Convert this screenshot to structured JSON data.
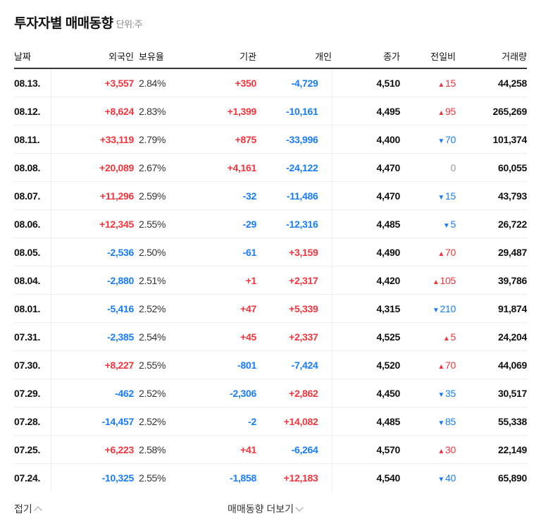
{
  "header": {
    "title": "투자자별 매매동향",
    "unit": "단위:주"
  },
  "columns": [
    "날짜",
    "외국인",
    "보유율",
    "기관",
    "개인",
    "종가",
    "전일비",
    "거래량"
  ],
  "colors": {
    "up": "#f0353e",
    "down": "#1a7cf5",
    "neutral": "#999999"
  },
  "rows": [
    [
      "08.13.",
      "+3,557",
      "2.84%",
      "+350",
      "-4,729",
      "4,510",
      "up",
      "15",
      "44,258"
    ],
    [
      "08.12.",
      "+8,624",
      "2.83%",
      "+1,399",
      "-10,161",
      "4,495",
      "up",
      "95",
      "265,269"
    ],
    [
      "08.11.",
      "+33,119",
      "2.79%",
      "+875",
      "-33,996",
      "4,400",
      "down",
      "70",
      "101,374"
    ],
    [
      "08.08.",
      "+20,089",
      "2.67%",
      "+4,161",
      "-24,122",
      "4,470",
      "none",
      "0",
      "60,055"
    ],
    [
      "08.07.",
      "+11,296",
      "2.59%",
      "-32",
      "-11,486",
      "4,470",
      "down",
      "15",
      "43,793"
    ],
    [
      "08.06.",
      "+12,345",
      "2.55%",
      "-29",
      "-12,316",
      "4,485",
      "down",
      "5",
      "26,722"
    ],
    [
      "08.05.",
      "-2,536",
      "2.50%",
      "-61",
      "+3,159",
      "4,490",
      "up",
      "70",
      "29,487"
    ],
    [
      "08.04.",
      "-2,880",
      "2.51%",
      "+1",
      "+2,317",
      "4,420",
      "up",
      "105",
      "39,786"
    ],
    [
      "08.01.",
      "-5,416",
      "2.52%",
      "+47",
      "+5,339",
      "4,315",
      "down",
      "210",
      "91,874"
    ],
    [
      "07.31.",
      "-2,385",
      "2.54%",
      "+45",
      "+2,337",
      "4,525",
      "up",
      "5",
      "24,204"
    ],
    [
      "07.30.",
      "+8,227",
      "2.55%",
      "-801",
      "-7,424",
      "4,520",
      "up",
      "70",
      "44,069"
    ],
    [
      "07.29.",
      "-462",
      "2.52%",
      "-2,306",
      "+2,862",
      "4,450",
      "down",
      "35",
      "30,517"
    ],
    [
      "07.28.",
      "-14,457",
      "2.52%",
      "-2",
      "+14,082",
      "4,485",
      "down",
      "85",
      "55,338"
    ],
    [
      "07.25.",
      "+6,223",
      "2.58%",
      "+41",
      "-6,264",
      "4,570",
      "up",
      "30",
      "22,149"
    ],
    [
      "07.24.",
      "-10,325",
      "2.55%",
      "-1,858",
      "+12,183",
      "4,540",
      "down",
      "40",
      "65,890"
    ]
  ],
  "footer": {
    "collapse": "접기",
    "more": "매매동향 더보기"
  }
}
